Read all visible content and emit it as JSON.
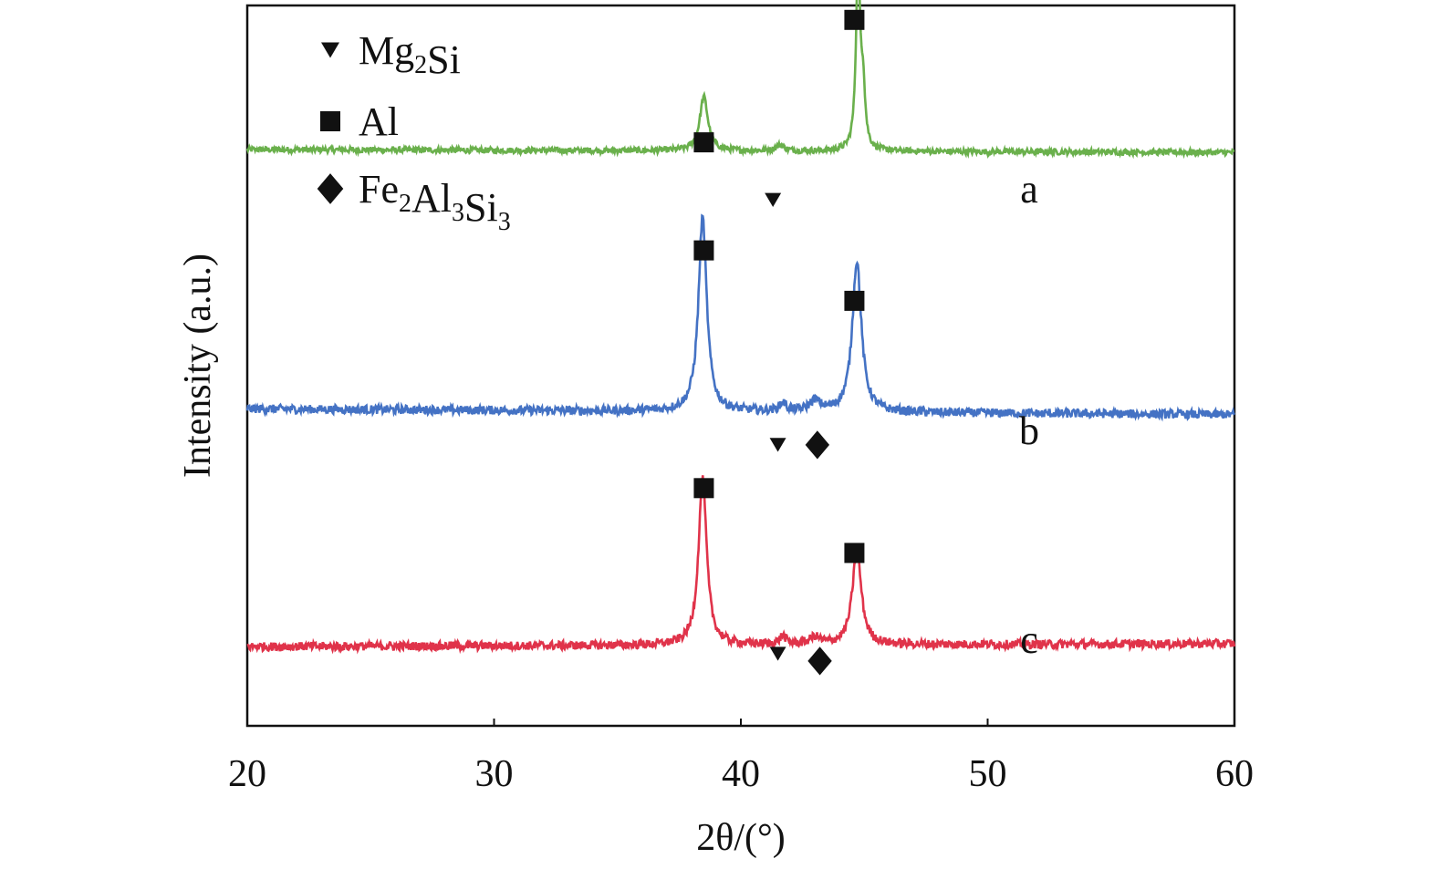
{
  "chart_data": {
    "type": "line",
    "xlabel": "2θ/(°)",
    "ylabel": "Intensity (a.u.)",
    "xlim": [
      20,
      60
    ],
    "xticks": [
      "20",
      "30",
      "40",
      "50",
      "60"
    ],
    "grid": false,
    "legend": {
      "placement": "top-left",
      "entries": [
        {
          "marker": "triangle-down",
          "label": "Mg",
          "sub1": "2",
          "label2": "Si",
          "sub2": "",
          "label3": "",
          "sub3": ""
        },
        {
          "marker": "square",
          "label": "Al",
          "sub1": "",
          "label2": "",
          "sub2": "",
          "label3": "",
          "sub3": ""
        },
        {
          "marker": "diamond",
          "label": "Fe",
          "sub1": "2",
          "label2": "Al",
          "sub2": "3",
          "label3": "Si",
          "sub3": "3"
        }
      ]
    },
    "series": [
      {
        "name": "a",
        "color": "#6ab04c",
        "offset": 0.8,
        "noise": 0.004,
        "baseline_slope": -0.004,
        "peaks": [
          [
            38.5,
            0.075,
            0.2
          ],
          [
            41.6,
            0.008,
            0.2
          ],
          [
            44.75,
            0.26,
            0.1
          ],
          [
            44.95,
            0.08,
            0.1
          ]
        ]
      },
      {
        "name": "b",
        "color": "#4472c4",
        "offset": 0.44,
        "noise": 0.006,
        "baseline_slope": -0.008,
        "peaks": [
          [
            38.45,
            0.27,
            0.2
          ],
          [
            41.7,
            0.012,
            0.15
          ],
          [
            43.0,
            0.015,
            0.25
          ],
          [
            44.7,
            0.21,
            0.22
          ]
        ]
      },
      {
        "name": "c",
        "color": "#e0334a",
        "offset": 0.11,
        "noise": 0.006,
        "baseline_slope": 0.004,
        "peaks": [
          [
            38.45,
            0.23,
            0.2
          ],
          [
            41.7,
            0.012,
            0.15
          ],
          [
            43.0,
            0.01,
            0.25
          ],
          [
            44.7,
            0.13,
            0.22
          ]
        ]
      }
    ],
    "phase_markers": [
      {
        "series": "a",
        "phase": "Al",
        "x": 38.5,
        "y": 0.81
      },
      {
        "series": "a",
        "phase": "Mg2Si",
        "x": 41.3,
        "y": 0.73
      },
      {
        "series": "a",
        "phase": "Al",
        "x": 44.6,
        "y": 0.98
      },
      {
        "series": "b",
        "phase": "Al",
        "x": 38.5,
        "y": 0.66
      },
      {
        "series": "b",
        "phase": "Mg2Si",
        "x": 41.5,
        "y": 0.39
      },
      {
        "series": "b",
        "phase": "Fe2Al3Si3",
        "x": 43.1,
        "y": 0.39
      },
      {
        "series": "b",
        "phase": "Al",
        "x": 44.6,
        "y": 0.59
      },
      {
        "series": "c",
        "phase": "Al",
        "x": 38.5,
        "y": 0.33
      },
      {
        "series": "c",
        "phase": "Mg2Si",
        "x": 41.5,
        "y": 0.1
      },
      {
        "series": "c",
        "phase": "Fe2Al3Si3",
        "x": 43.2,
        "y": 0.09
      },
      {
        "series": "c",
        "phase": "Al",
        "x": 44.6,
        "y": 0.24
      }
    ]
  }
}
